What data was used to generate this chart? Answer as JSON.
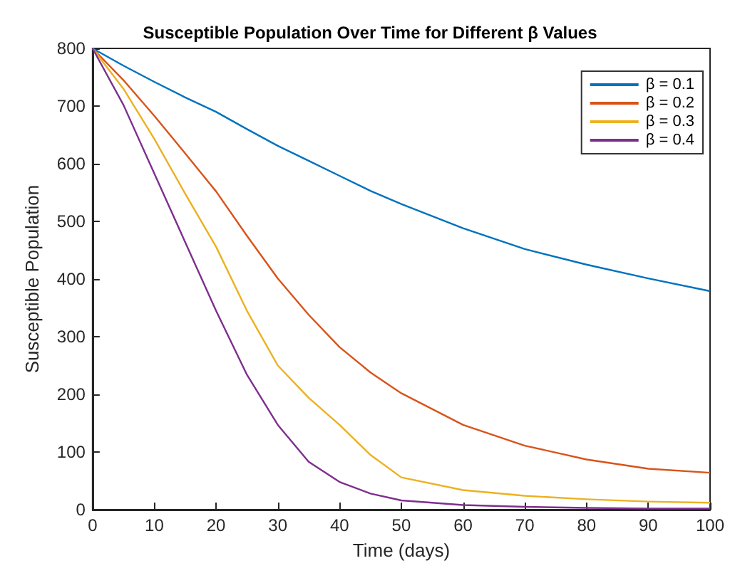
{
  "chart_data": {
    "type": "line",
    "title": "Susceptible Population Over Time for Different β Values",
    "xlabel": "Time (days)",
    "ylabel": "Susceptible Population",
    "x": [
      0,
      5,
      10,
      15,
      20,
      25,
      30,
      35,
      40,
      45,
      50,
      60,
      70,
      80,
      90,
      100
    ],
    "series": [
      {
        "name": "β = 0.1",
        "color": "#0072bd",
        "values": [
          800,
          770,
          742,
          715,
          690,
          660,
          631,
          605,
          579,
          553,
          530,
          488,
          452,
          425,
          401,
          379
        ]
      },
      {
        "name": "β = 0.2",
        "color": "#d95319",
        "values": [
          800,
          745,
          683,
          618,
          552,
          475,
          401,
          338,
          282,
          238,
          202,
          147,
          111,
          87,
          71,
          64
        ]
      },
      {
        "name": "β = 0.3",
        "color": "#edb120",
        "values": [
          800,
          730,
          643,
          548,
          456,
          345,
          250,
          194,
          147,
          95,
          56,
          34,
          24,
          18,
          14,
          12
        ]
      },
      {
        "name": "β = 0.4",
        "color": "#7e2f8e",
        "values": [
          800,
          702,
          583,
          464,
          345,
          234,
          147,
          83,
          48,
          28,
          16,
          8,
          5,
          3,
          2,
          2
        ]
      }
    ],
    "xlim": [
      0,
      100
    ],
    "xticks": [
      0,
      10,
      20,
      30,
      40,
      50,
      60,
      70,
      80,
      90,
      100
    ],
    "ylim": [
      0,
      800
    ],
    "yticks": [
      0,
      100,
      200,
      300,
      400,
      500,
      600,
      700,
      800
    ],
    "grid": false,
    "legend": "top right",
    "marker": "none",
    "line_style": "solid"
  }
}
